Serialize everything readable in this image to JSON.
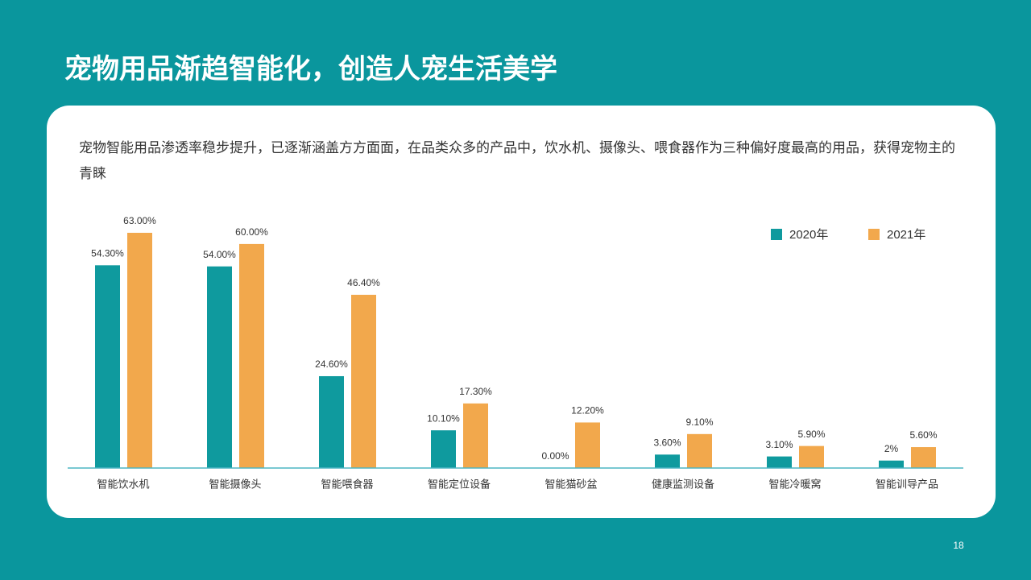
{
  "title": "宠物用品渐趋智能化，创造人宠生活美学",
  "description": "宠物智能用品渗透率稳步提升，已逐渐涵盖方方面面，在品类众多的产品中，饮水机、摄像头、喂食器作为三种偏好度最高的用品，获得宠物主的青睐",
  "page_number": "18",
  "chart_data": {
    "type": "bar",
    "categories": [
      "智能饮水机",
      "智能摄像头",
      "智能喂食器",
      "智能定位设备",
      "智能猫砂盆",
      "健康监测设备",
      "智能冷暖窝",
      "智能训导产品"
    ],
    "series": [
      {
        "name": "2020年",
        "color": "#0f9a9e",
        "values": [
          54.3,
          54.0,
          24.6,
          10.1,
          0,
          3.6,
          3.1,
          2
        ],
        "value_labels": [
          "54.30%",
          "54.00%",
          "24.60%",
          "10.10%",
          "0.00%",
          "3.60%",
          "3.10%",
          "2%"
        ]
      },
      {
        "name": "2021年",
        "color": "#f2a84c",
        "values": [
          63,
          60,
          46.4,
          17.3,
          12.2,
          9.1,
          5.9,
          5.6
        ],
        "value_labels": [
          "63.00%",
          "60.00%",
          "46.40%",
          "17.30%",
          "12.20%",
          "9.10%",
          "5.90%",
          "5.60%"
        ]
      }
    ],
    "legend": "top-right"
  }
}
